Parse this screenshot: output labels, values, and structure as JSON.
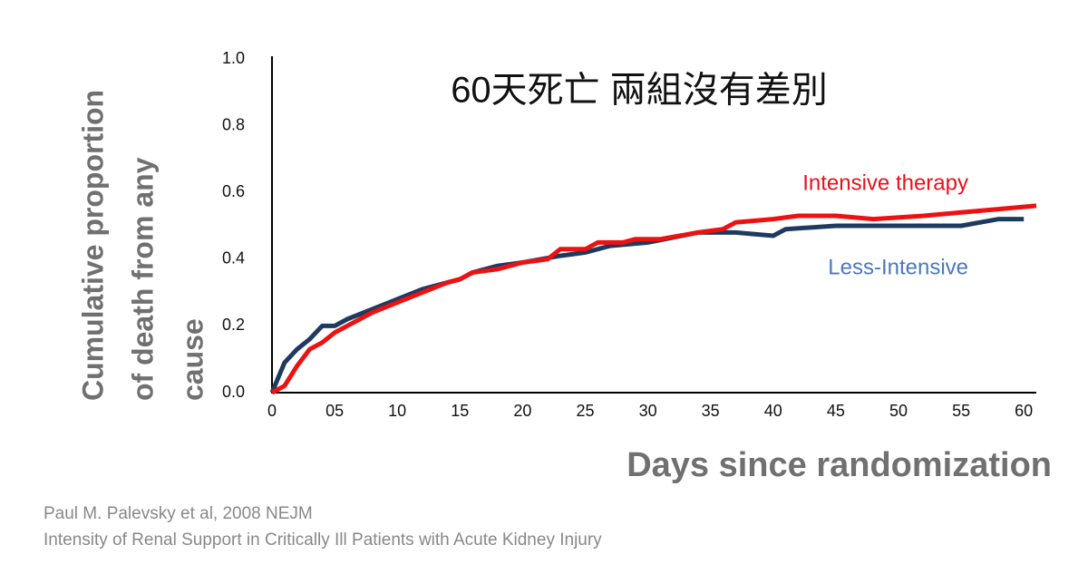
{
  "chart_data": {
    "type": "line",
    "title": "60天死亡 兩組沒有差別",
    "ylabel": [
      "Cumulative proportion",
      "of death from any",
      "cause"
    ],
    "xlabel": "Days since randomization",
    "source": [
      "Paul M. Palevsky et al, 2008 NEJM",
      "Intensity of Renal Support in Critically Ill Patients with Acute Kidney Injury"
    ],
    "xlim": [
      0,
      61
    ],
    "ylim": [
      0,
      1
    ],
    "xticks": [
      0,
      {
        "value": 5,
        "label": "05"
      },
      10,
      15,
      20,
      25,
      30,
      35,
      40,
      45,
      50,
      55,
      60
    ],
    "yticks": [
      {
        "value": 0,
        "label": "0.0"
      },
      0.2,
      0.4,
      0.6,
      0.8,
      {
        "value": 1,
        "label": "1.0"
      }
    ],
    "grid": false,
    "series": [
      {
        "name": "Less-Intensive",
        "color": "#1f3a60",
        "label_color": "#4a78c0",
        "x": [
          0,
          1,
          2,
          3,
          4,
          5,
          6,
          8,
          10,
          12,
          14,
          15,
          16,
          18,
          20,
          23,
          25,
          27,
          30,
          34,
          37,
          40,
          41,
          45,
          50,
          55,
          58,
          60
        ],
        "values": [
          0,
          0.09,
          0.13,
          0.16,
          0.2,
          0.2,
          0.22,
          0.25,
          0.28,
          0.31,
          0.33,
          0.34,
          0.36,
          0.38,
          0.39,
          0.41,
          0.42,
          0.44,
          0.45,
          0.48,
          0.48,
          0.47,
          0.49,
          0.5,
          0.5,
          0.5,
          0.52,
          0.52
        ]
      },
      {
        "name": "Intensive therapy",
        "color": "#ee1111",
        "label_color": "#e8101a",
        "x": [
          0,
          1,
          2,
          3,
          4,
          5,
          6,
          8,
          10,
          12,
          14,
          15,
          16,
          18,
          20,
          22,
          23,
          25,
          26,
          28,
          29,
          31,
          34,
          36,
          37,
          40,
          42,
          45,
          48,
          52,
          55,
          58,
          61
        ],
        "values": [
          0,
          0.02,
          0.08,
          0.13,
          0.15,
          0.18,
          0.2,
          0.24,
          0.27,
          0.3,
          0.33,
          0.34,
          0.36,
          0.37,
          0.39,
          0.4,
          0.43,
          0.43,
          0.45,
          0.45,
          0.46,
          0.46,
          0.48,
          0.49,
          0.51,
          0.52,
          0.53,
          0.53,
          0.52,
          0.53,
          0.54,
          0.55,
          0.56
        ]
      }
    ]
  }
}
